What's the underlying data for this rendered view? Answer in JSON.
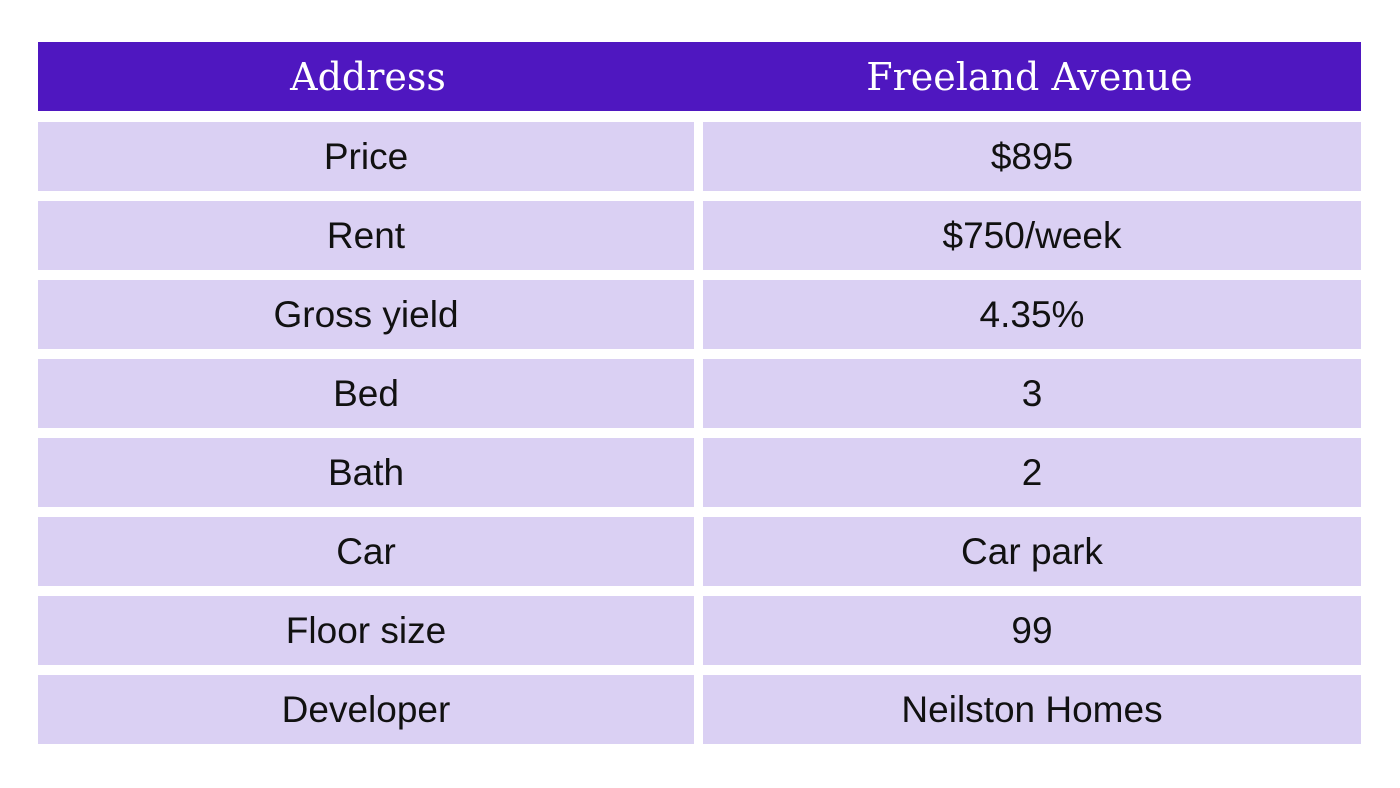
{
  "header": {
    "label": "Address",
    "value": "Freeland Avenue"
  },
  "rows": [
    {
      "label": "Price",
      "value": "$895"
    },
    {
      "label": "Rent",
      "value": "$750/week"
    },
    {
      "label": "Gross yield",
      "value": "4.35%"
    },
    {
      "label": "Bed",
      "value": "3"
    },
    {
      "label": "Bath",
      "value": "2"
    },
    {
      "label": "Car",
      "value": "Car park"
    },
    {
      "label": "Floor size",
      "value": "99"
    },
    {
      "label": "Developer",
      "value": "Neilston Homes"
    }
  ],
  "colors": {
    "header_bg": "#4f17c0",
    "cell_bg": "#dad0f3"
  }
}
